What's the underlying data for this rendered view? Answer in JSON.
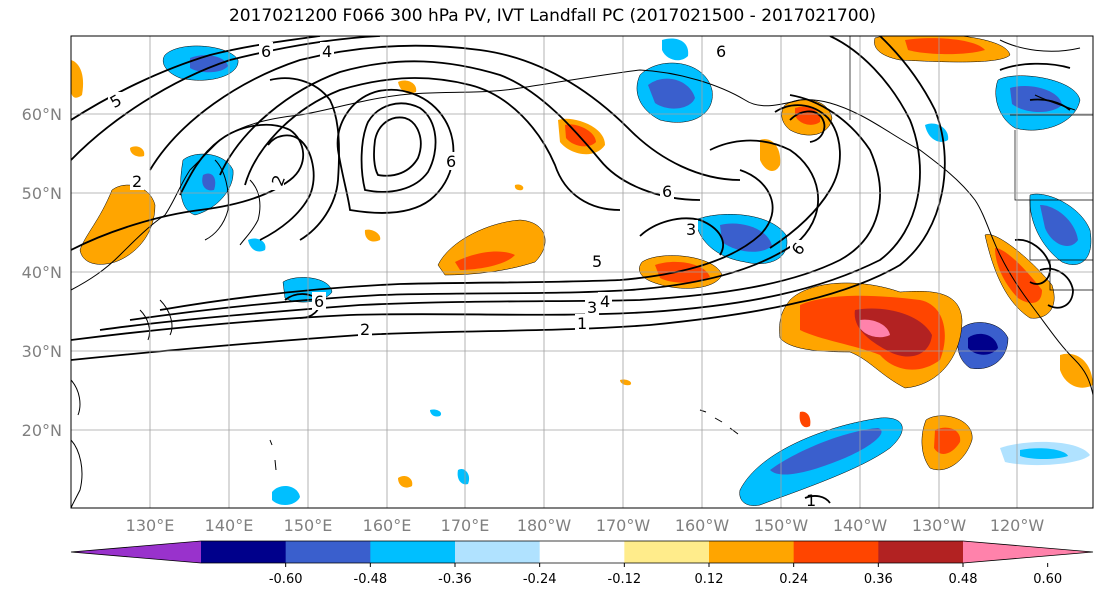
{
  "title": "2017021200 F066 300 hPa PV, IVT Landfall PC (2017021500 - 2017021700)",
  "latitude_labels": [
    "60°N",
    "50°N",
    "40°N",
    "30°N",
    "20°N"
  ],
  "longitude_labels": [
    "130°E",
    "140°E",
    "150°E",
    "160°E",
    "170°E",
    "180°W",
    "170°W",
    "160°W",
    "150°W",
    "140°W",
    "130°W",
    "120°W"
  ],
  "contour_labels": [
    "5",
    "4",
    "6",
    "6",
    "2",
    "2",
    "3",
    "5",
    "6",
    "6",
    "6",
    "4",
    "3",
    "2",
    "1",
    "6",
    "1"
  ],
  "colorbar": {
    "tick_labels": [
      "-0.60",
      "-0.48",
      "-0.36",
      "-0.24",
      "-0.12",
      "0.12",
      "0.24",
      "0.36",
      "0.48",
      "0.60"
    ],
    "colors": [
      "#9932cc",
      "#00008b",
      "#3a5fcd",
      "#00bfff",
      "#b0e2ff",
      "#ffffff",
      "#ffec8b",
      "#ffa500",
      "#ff4500",
      "#b22222",
      "#ff82ab"
    ]
  }
}
